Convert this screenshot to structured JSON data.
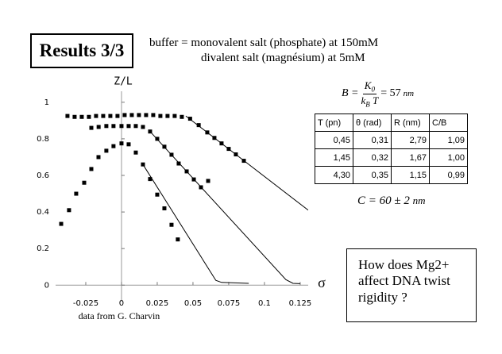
{
  "slide": {
    "title": "Results 3/3",
    "buffer_label": "buffer =",
    "buffer_lines": [
      "monovalent salt (phosphate) at 150mM",
      "divalent salt (magnésium) at 5mM"
    ],
    "formula_B": {
      "lhs": "B =",
      "numerator": "K",
      "numerator_sub": "0",
      "denominator": "k",
      "denominator_sub": "B",
      "denominator_tail": "T",
      "rhs": "= 57",
      "unit": "nm"
    },
    "table": {
      "header": [
        "T (pn)",
        "θ (rad)",
        "R (nm)",
        "C/B"
      ],
      "rows": [
        [
          "0,45",
          "0,31",
          "2,79",
          "1,09"
        ],
        [
          "1,45",
          "0,32",
          "1,67",
          "1,00"
        ],
        [
          "4,30",
          "0,35",
          "1,15",
          "0,99"
        ]
      ]
    },
    "formula_C": {
      "text": "C = 60 ± 2",
      "unit": "nm"
    },
    "question": "How does Mg2+ affect DNA twist rigidity ?"
  },
  "chart_data": {
    "type": "scatter",
    "ylabel": "Z/L",
    "xlabel": "σ",
    "caption": "data from G. Charvin",
    "xlim": [
      -0.0461,
      0.1306
    ],
    "ylim": [
      -0.09,
      1.06
    ],
    "xticks": [
      -0.025,
      0,
      0.025,
      0.05,
      0.075,
      0.1,
      0.125
    ],
    "yticks": [
      0,
      0.2,
      0.4,
      0.6,
      0.8,
      1
    ],
    "series": [
      {
        "mode": "markers",
        "color": "#000000",
        "x": [
          -0.0422,
          -0.0367,
          -0.0317,
          -0.0261,
          -0.0211,
          -0.0161,
          -0.0106,
          -0.0056,
          0,
          0.005,
          0.01,
          0.015,
          0.02,
          0.025,
          0.03,
          0.035,
          0.0394
        ],
        "values": [
          0.335,
          0.41,
          0.5,
          0.56,
          0.635,
          0.7,
          0.735,
          0.76,
          0.775,
          0.77,
          0.725,
          0.66,
          0.58,
          0.495,
          0.42,
          0.33,
          0.25
        ]
      },
      {
        "mode": "line",
        "color": "#000000",
        "x": [
          0.015,
          0.066,
          0.07,
          0.089
        ],
        "values": [
          0.66,
          0.026,
          0.015,
          0.01
        ]
      },
      {
        "mode": "markers",
        "color": "#000000",
        "x": [
          -0.0211,
          -0.016,
          -0.0106,
          -0.0056,
          0,
          0.005,
          0.01,
          0.015,
          0.02,
          0.025,
          0.03,
          0.035,
          0.04,
          0.0456,
          0.0506,
          0.0556,
          0.0606
        ],
        "values": [
          0.86,
          0.865,
          0.87,
          0.87,
          0.87,
          0.87,
          0.87,
          0.865,
          0.84,
          0.8,
          0.757,
          0.713,
          0.665,
          0.622,
          0.578,
          0.535,
          0.57
        ]
      },
      {
        "mode": "line",
        "color": "#000000",
        "x": [
          0.02,
          0.115,
          0.12,
          0.125
        ],
        "values": [
          0.84,
          0.03,
          0.01,
          0.008
        ]
      },
      {
        "mode": "markers",
        "color": "#000000",
        "x": [
          -0.0378,
          -0.0328,
          -0.0278,
          -0.0228,
          -0.0178,
          -0.0128,
          -0.0078,
          -0.0028,
          0.0022,
          0.0072,
          0.0122,
          0.0172,
          0.0222,
          0.0272,
          0.0322,
          0.0372,
          0.0422,
          0.048,
          0.054,
          0.06,
          0.065,
          0.07,
          0.075,
          0.08,
          0.0856
        ],
        "values": [
          0.925,
          0.92,
          0.92,
          0.92,
          0.925,
          0.925,
          0.925,
          0.925,
          0.93,
          0.93,
          0.93,
          0.93,
          0.93,
          0.925,
          0.925,
          0.925,
          0.92,
          0.91,
          0.875,
          0.835,
          0.805,
          0.775,
          0.745,
          0.715,
          0.68
        ]
      },
      {
        "mode": "line",
        "color": "#000000",
        "x": [
          0.045,
          0.1306
        ],
        "values": [
          0.925,
          0.41
        ]
      }
    ]
  }
}
